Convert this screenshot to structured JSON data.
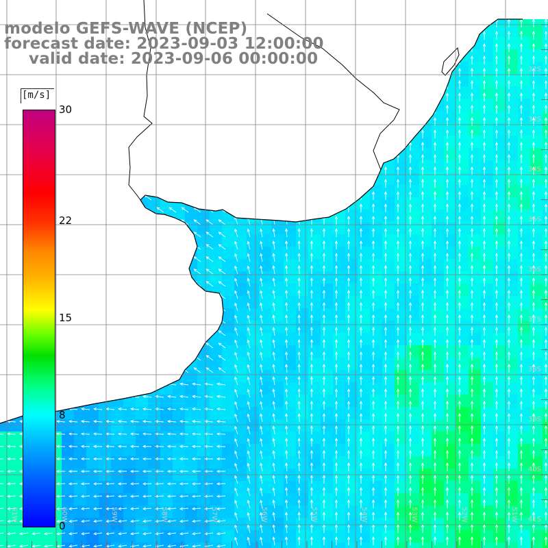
{
  "title": {
    "line1": "modelo GEFS-WAVE (NCEP)",
    "line2": "forecast date: 2023-09-03 12:00:00",
    "line3": "valid date: 2023-09-06 00:00:00"
  },
  "colorbar": {
    "unit": "[m/s]",
    "min": 0,
    "max": 30,
    "ticks": [
      "30",
      "22",
      "15",
      "8",
      "0"
    ],
    "tick_values": [
      30,
      22,
      15,
      8,
      0
    ],
    "colors": [
      "#0000ff",
      "#00aaff",
      "#00ffff",
      "#00e000",
      "#ffff00",
      "#ff8800",
      "#ff0000",
      "#c0007f"
    ]
  },
  "map": {
    "field": "surface wind speed with direction arrows",
    "dominant_speed_range_ms": [
      4,
      9
    ],
    "land_color": "#ffffff",
    "coast_color": "#000000",
    "grid_color": "#808080",
    "arrow_color": "#ffffff",
    "lat_labels": [
      "32S",
      "33S",
      "34S",
      "35S",
      "36S",
      "37S",
      "38S",
      "39S",
      "40S",
      "41S"
    ],
    "lon_labels": [
      "61W",
      "60W",
      "59W",
      "58W",
      "57W",
      "56W",
      "55W",
      "54W",
      "53W",
      "52W",
      "51W"
    ]
  }
}
